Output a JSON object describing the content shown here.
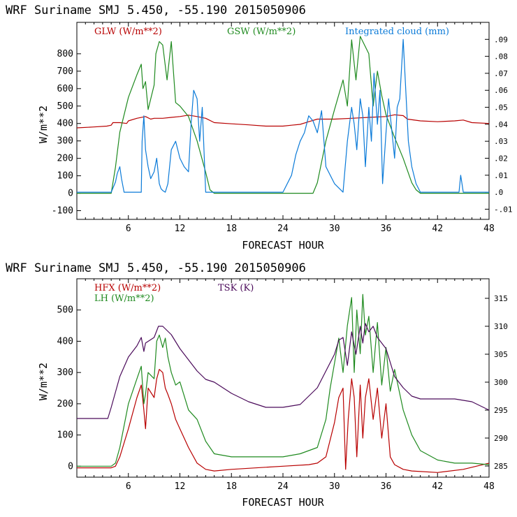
{
  "colors": {
    "red": "#b80000",
    "green": "#1f8a1f",
    "blue": "#0a7ad8",
    "purple": "#4a0a5a"
  },
  "chart_data": [
    {
      "type": "line",
      "title": "WRF   Suriname SMJ   5.450, -55.190  2015050906",
      "xlabel": "FORECAST HOUR",
      "ylabel": "W/m**2",
      "xlim": [
        0,
        48
      ],
      "ylim": [
        -150,
        980
      ],
      "xticks": [
        6,
        12,
        18,
        24,
        30,
        36,
        42,
        48
      ],
      "yticks": [
        -100,
        0,
        100,
        200,
        300,
        400,
        500,
        600,
        700,
        800
      ],
      "y2lim": [
        -0.016,
        0.1
      ],
      "y2ticks": [
        -0.01,
        0,
        0.01,
        0.02,
        0.03,
        0.04,
        0.05,
        0.06,
        0.07,
        0.08,
        0.09
      ],
      "y2ticklabels": [
        "-.01",
        ".0",
        ".01",
        ".02",
        ".03",
        ".04",
        ".05",
        ".06",
        ".07",
        ".08",
        ".09"
      ],
      "series": [
        {
          "name": "GLW (W/m**2)",
          "color": "red",
          "axis": "left",
          "x": [
            0,
            2,
            3.5,
            4,
            4.2,
            5,
            5.8,
            6,
            7,
            8,
            8.6,
            9,
            10,
            11,
            12,
            13,
            14,
            15,
            16,
            18,
            20,
            22,
            24,
            25,
            26,
            27,
            28,
            30,
            32,
            34,
            36,
            37,
            38,
            38.5,
            40,
            42,
            44,
            45,
            46,
            48
          ],
          "y": [
            375,
            380,
            385,
            390,
            405,
            405,
            400,
            415,
            430,
            440,
            425,
            430,
            430,
            435,
            440,
            448,
            440,
            430,
            405,
            398,
            392,
            385,
            385,
            390,
            395,
            410,
            425,
            425,
            430,
            435,
            440,
            450,
            445,
            425,
            415,
            410,
            415,
            420,
            405,
            400
          ]
        },
        {
          "name": "GSW (W/m**2)",
          "color": "green",
          "axis": "left",
          "x": [
            0,
            4,
            4.5,
            5,
            6,
            7,
            7.5,
            7.7,
            8,
            8.3,
            9,
            9.2,
            9.6,
            10,
            10.5,
            11,
            11.5,
            12,
            13,
            14,
            15,
            15.5,
            16,
            18,
            24,
            27.5,
            28,
            29,
            30,
            31,
            31.5,
            32,
            32.5,
            33,
            34,
            34.5,
            35,
            35.5,
            36,
            37,
            38,
            39,
            39.5,
            40,
            48
          ],
          "y": [
            0,
            0,
            150,
            350,
            550,
            680,
            740,
            600,
            640,
            480,
            620,
            800,
            870,
            850,
            650,
            870,
            520,
            500,
            440,
            300,
            120,
            20,
            0,
            0,
            0,
            0,
            60,
            300,
            480,
            650,
            500,
            880,
            650,
            900,
            800,
            500,
            700,
            560,
            450,
            320,
            200,
            60,
            20,
            0,
            0
          ]
        },
        {
          "name": "Integrated cloud (mm)",
          "color": "blue",
          "axis": "right",
          "x": [
            0,
            4,
            4.5,
            4.7,
            5,
            5.2,
            5.5,
            6,
            7.5,
            7.6,
            7.8,
            8,
            8.3,
            8.6,
            9,
            9.3,
            9.6,
            9.8,
            10,
            10.3,
            10.6,
            11,
            11.5,
            12,
            12.5,
            13,
            13.3,
            13.6,
            14,
            14.3,
            14.6,
            15,
            24,
            25,
            25.5,
            26,
            26.5,
            27,
            27.5,
            28,
            28.5,
            29,
            30,
            31,
            31.5,
            32,
            32.3,
            32.6,
            33,
            33.3,
            33.6,
            34,
            34.3,
            34.6,
            35,
            35.3,
            35.6,
            36,
            36.3,
            36.6,
            37,
            37.3,
            37.6,
            38,
            38.3,
            38.6,
            39,
            39.5,
            40,
            44,
            44.5,
            44.7,
            45,
            48
          ],
          "y": [
            0,
            0,
            0.006,
            0.011,
            0.015,
            0.008,
            0,
            0,
            0,
            0.03,
            0.045,
            0.025,
            0.015,
            0.008,
            0.012,
            0.02,
            0.005,
            0.002,
            0.001,
            0,
            0.005,
            0.025,
            0.03,
            0.02,
            0.015,
            0.012,
            0.04,
            0.06,
            0.055,
            0.03,
            0.05,
            0,
            0,
            0.01,
            0.022,
            0.03,
            0.035,
            0.045,
            0.042,
            0.035,
            0.048,
            0.015,
            0.005,
            0,
            0.03,
            0.05,
            0.04,
            0.025,
            0.055,
            0.045,
            0.015,
            0.05,
            0.03,
            0.07,
            0.04,
            0.06,
            0.005,
            0.035,
            0.055,
            0.04,
            0.02,
            0.05,
            0.055,
            0.09,
            0.06,
            0.03,
            0.015,
            0.005,
            0,
            0,
            0,
            0.01,
            0,
            0
          ]
        }
      ]
    },
    {
      "type": "line",
      "title": "WRF   Suriname SMJ   5.450, -55.190  2015050906",
      "xlabel": "FORECAST HOUR",
      "ylabel": "W/m**2",
      "xlim": [
        0,
        48
      ],
      "ylim": [
        -35,
        600
      ],
      "xticks": [
        6,
        12,
        18,
        24,
        30,
        36,
        42,
        48
      ],
      "yticks": [
        0,
        100,
        200,
        300,
        400,
        500
      ],
      "y2lim": [
        283,
        318.5
      ],
      "y2ticks": [
        285,
        290,
        295,
        300,
        305,
        310,
        315
      ],
      "y2ticklabels": [
        "285",
        "290",
        "295",
        "300",
        "305",
        "310",
        "315"
      ],
      "series": [
        {
          "name": "HFX (W/m**2)",
          "color": "red",
          "axis": "left",
          "x": [
            0,
            4,
            4.5,
            5,
            6,
            7,
            7.5,
            7.8,
            8,
            8.3,
            9,
            9.3,
            9.6,
            10,
            10.3,
            10.6,
            11,
            11.5,
            12,
            13,
            14,
            15,
            16,
            18,
            24,
            27,
            28,
            29,
            30,
            30.5,
            31,
            31.3,
            31.6,
            32,
            32.3,
            32.6,
            33,
            33.3,
            33.6,
            34,
            34.5,
            35,
            35.5,
            36,
            36.5,
            37,
            38,
            39,
            42,
            45,
            48
          ],
          "y": [
            -5,
            -5,
            0,
            30,
            120,
            220,
            260,
            180,
            120,
            250,
            220,
            280,
            310,
            300,
            250,
            230,
            200,
            150,
            120,
            60,
            10,
            -10,
            -15,
            -10,
            0,
            5,
            10,
            30,
            140,
            220,
            250,
            -10,
            150,
            280,
            220,
            30,
            260,
            90,
            220,
            280,
            150,
            250,
            90,
            200,
            30,
            5,
            -10,
            -15,
            -20,
            -10,
            10
          ]
        },
        {
          "name": "LH (W/m**2)",
          "color": "green",
          "axis": "left",
          "x": [
            0,
            4,
            4.5,
            5,
            6,
            7,
            7.5,
            7.8,
            8,
            8.3,
            9,
            9.3,
            9.6,
            10,
            10.3,
            10.6,
            11,
            11.5,
            12,
            13,
            14,
            15,
            16,
            18,
            24,
            26,
            28,
            29,
            29.5,
            30,
            30.5,
            31,
            31.5,
            32,
            32.3,
            32.6,
            33,
            33.3,
            33.6,
            34,
            34.5,
            35,
            35.5,
            36,
            36.5,
            37,
            38,
            39,
            40,
            42,
            44,
            46,
            48
          ],
          "y": [
            0,
            0,
            10,
            60,
            200,
            280,
            320,
            200,
            230,
            300,
            280,
            400,
            420,
            380,
            410,
            350,
            300,
            260,
            270,
            180,
            150,
            80,
            40,
            30,
            30,
            40,
            60,
            150,
            250,
            330,
            410,
            300,
            450,
            540,
            300,
            500,
            360,
            550,
            420,
            480,
            300,
            460,
            260,
            380,
            240,
            310,
            180,
            100,
            50,
            20,
            10,
            10,
            5
          ]
        },
        {
          "name": "TSK (K)",
          "color": "purple",
          "axis": "right",
          "x": [
            0,
            3.6,
            4,
            5,
            6,
            7,
            7.5,
            7.8,
            8,
            9,
            9.5,
            10,
            11,
            12,
            13,
            14,
            15,
            16,
            18,
            20,
            21,
            22,
            24,
            26,
            28,
            29,
            30,
            30.5,
            31,
            31.5,
            32,
            32.5,
            33,
            33.3,
            33.6,
            34,
            34.5,
            35,
            36,
            37,
            38,
            39,
            40,
            42,
            44,
            46,
            48
          ],
          "y": [
            293.5,
            293.5,
            295.5,
            301,
            304.5,
            306.5,
            308,
            305.5,
            307,
            308,
            310,
            310,
            308.5,
            306,
            304,
            302,
            300.5,
            300,
            298,
            296.5,
            296,
            295.5,
            295.5,
            296,
            299,
            302,
            305,
            307.5,
            308,
            303,
            309,
            305,
            310,
            307,
            310.5,
            309,
            310,
            308,
            306,
            301,
            299,
            297.5,
            297,
            297,
            297,
            296.5,
            295
          ]
        }
      ]
    }
  ]
}
